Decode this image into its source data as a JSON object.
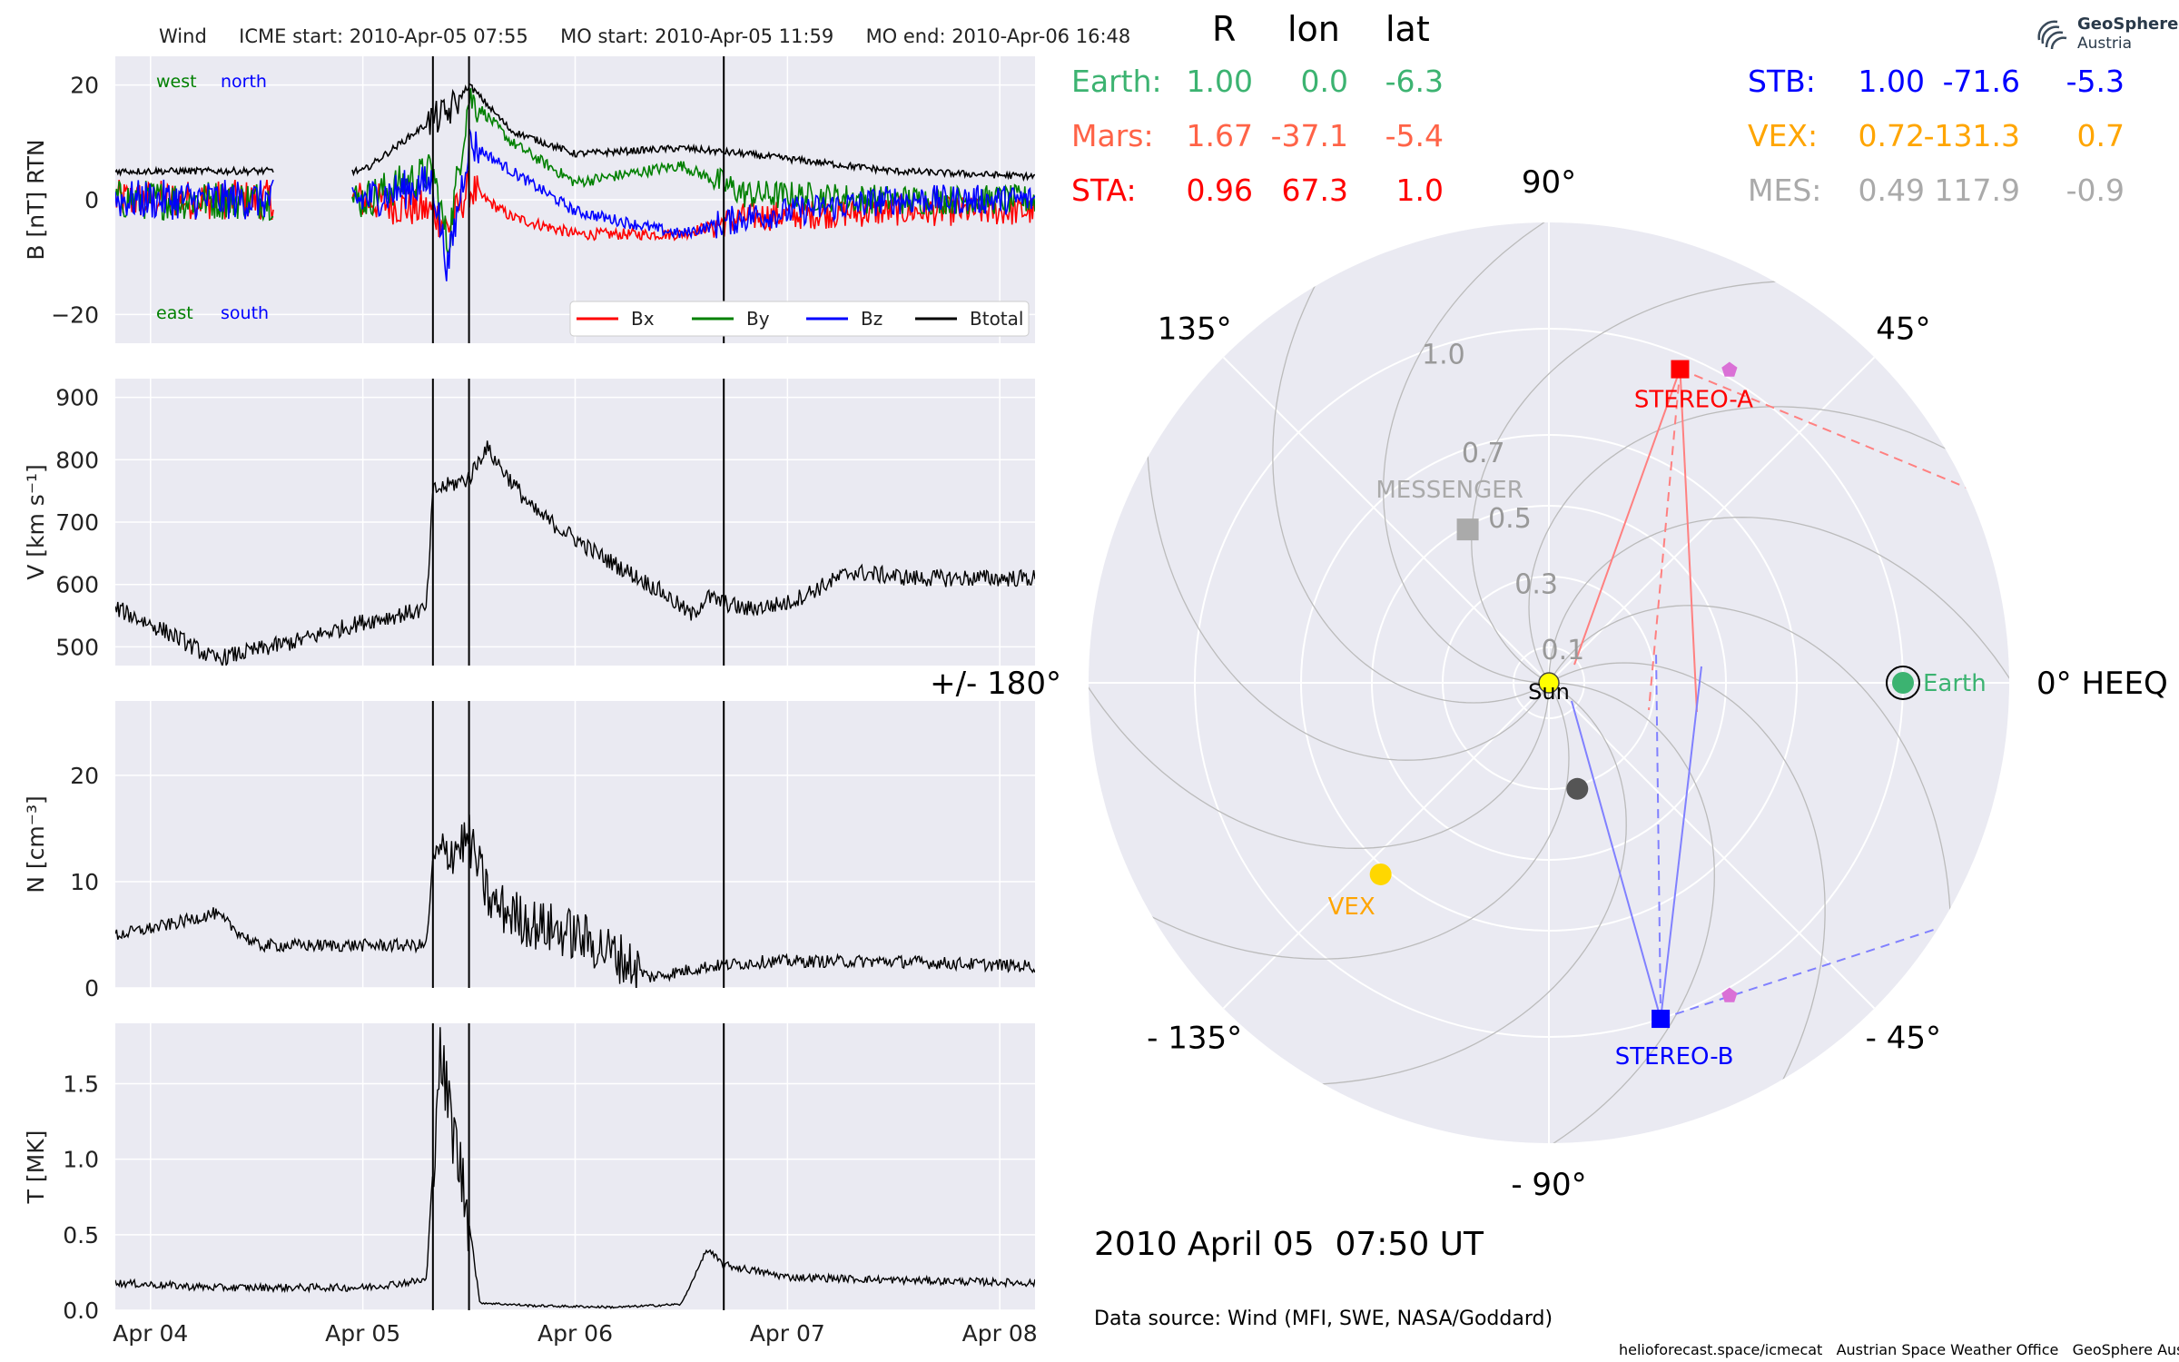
{
  "header": {
    "instrument": "Wind",
    "icme_start": "ICME start: 2010-Apr-05 07:55",
    "mo_start": "MO start: 2010-Apr-05 11:59",
    "mo_end": "MO end: 2010-Apr-06 16:48"
  },
  "logo": {
    "line1": "GeoSphere",
    "line2": "Austria"
  },
  "positions_table": {
    "columns": [
      "R",
      "lon",
      "lat"
    ],
    "left": [
      {
        "name": "Earth:",
        "R": "1.00",
        "lon": "0.0",
        "lat": "-6.3",
        "color": "#3cb371"
      },
      {
        "name": "Mars:",
        "R": "1.67",
        "lon": "-37.1",
        "lat": "-5.4",
        "color": "#ff6347"
      },
      {
        "name": "STA:",
        "R": "0.96",
        "lon": "67.3",
        "lat": "1.0",
        "color": "#ff0000"
      }
    ],
    "right": [
      {
        "name": "STB:",
        "R": "1.00",
        "lon": "-71.6",
        "lat": "-5.3",
        "color": "#0000ff"
      },
      {
        "name": "VEX:",
        "R": "0.72",
        "lon": "-131.3",
        "lat": "0.7",
        "color": "#ffa500"
      },
      {
        "name": "MES:",
        "R": "0.49",
        "lon": "117.9",
        "lat": "-0.9",
        "color": "#aaaaaa"
      }
    ]
  },
  "footer": {
    "datetime": "2010 April 05  07:50 UT",
    "source": "Data source: Wind (MFI, SWE, NASA/Goddard)",
    "credits": "helioforecast.space/icmecat   Austrian Space Weather Office   GeoSphere Austria"
  },
  "chart_data": [
    {
      "type": "line",
      "panel": "magnetic-field",
      "ylabel": "B [nT] RTN",
      "ylim": [
        -25,
        25
      ],
      "yticks": [
        "20",
        "0",
        "−20"
      ],
      "yticks_values": [
        20,
        0,
        -20
      ],
      "x_range_days": [
        "2010-04-03T20:00",
        "2010-04-08T04:00"
      ],
      "corner_labels": {
        "west": "west",
        "north": "north",
        "east": "east",
        "south": "south"
      },
      "legend": {
        "placement": "lower-right",
        "entries": [
          "Bx",
          "By",
          "Bz",
          "Btotal"
        ]
      },
      "colors": {
        "Bx": "#ff0000",
        "By": "#008000",
        "Bz": "#0000ff",
        "Btotal": "#000000"
      },
      "series": [
        {
          "name": "Bx",
          "x_day": [
            -0.15,
            0.7,
            1.0,
            1.33,
            1.4,
            1.5,
            1.7,
            2.0,
            2.5,
            2.8,
            3.5,
            4.2
          ],
          "y": [
            0,
            0,
            0,
            -2,
            -5,
            2,
            -3,
            -6,
            -6,
            -3,
            -2,
            -2
          ]
        },
        {
          "name": "By",
          "x_day": [
            -0.15,
            0.7,
            1.0,
            1.33,
            1.4,
            1.5,
            1.7,
            2.0,
            2.5,
            2.8,
            3.5,
            4.2
          ],
          "y": [
            0,
            0,
            0,
            5,
            -8,
            18,
            10,
            3,
            6,
            1,
            0,
            0
          ]
        },
        {
          "name": "Bz",
          "x_day": [
            -0.15,
            0.7,
            1.0,
            1.33,
            1.4,
            1.5,
            1.7,
            2.0,
            2.5,
            2.8,
            3.5,
            4.2
          ],
          "y": [
            0,
            0,
            0,
            3,
            -12,
            10,
            5,
            -2,
            -6,
            -3,
            0,
            0
          ]
        },
        {
          "name": "Btotal",
          "x_day": [
            -0.15,
            0.7,
            1.0,
            1.33,
            1.4,
            1.5,
            1.7,
            2.0,
            2.5,
            2.8,
            3.5,
            4.2
          ],
          "y": [
            5,
            5,
            5,
            14,
            15,
            20,
            12,
            8,
            9,
            8,
            5,
            4
          ]
        }
      ]
    },
    {
      "type": "line",
      "panel": "speed",
      "ylabel": "V [km s⁻¹]",
      "ylim": [
        470,
        930
      ],
      "yticks": [
        "900",
        "800",
        "700",
        "600",
        "500"
      ],
      "yticks_values": [
        900,
        800,
        700,
        600,
        500
      ],
      "series": [
        {
          "name": "V",
          "x_day": [
            -0.15,
            0.1,
            0.3,
            0.7,
            1.0,
            1.3,
            1.33,
            1.5,
            1.58,
            1.8,
            2.1,
            2.4,
            2.55,
            2.62,
            2.8,
            3.0,
            3.3,
            3.6,
            4.2
          ],
          "y": [
            560,
            520,
            480,
            510,
            540,
            560,
            750,
            770,
            820,
            720,
            650,
            590,
            550,
            580,
            560,
            570,
            620,
            610,
            610
          ]
        }
      ]
    },
    {
      "type": "line",
      "panel": "density",
      "ylabel": "N [cm⁻³]",
      "ylim": [
        0,
        27
      ],
      "yticks": [
        "20",
        "10",
        "0"
      ],
      "yticks_values": [
        20,
        10,
        0
      ],
      "series": [
        {
          "name": "N",
          "x_day": [
            -0.15,
            0.1,
            0.3,
            0.5,
            0.7,
            1.0,
            1.3,
            1.33,
            1.5,
            1.6,
            1.8,
            2.0,
            2.2,
            2.35,
            2.62,
            2.9,
            3.5,
            4.2
          ],
          "y": [
            5,
            6,
            7,
            4,
            4,
            4,
            4,
            12,
            14,
            8,
            6,
            5,
            3,
            1,
            2,
            2.5,
            2.5,
            2
          ]
        }
      ]
    },
    {
      "type": "line",
      "panel": "temperature",
      "ylabel": "T [MK]",
      "ylim": [
        0,
        1.9
      ],
      "yticks": [
        "1.5",
        "1.0",
        "0.5",
        "0.0"
      ],
      "yticks_values": [
        1.5,
        1.0,
        0.5,
        0.0
      ],
      "xticks": [
        "Apr 04",
        "Apr 05",
        "Apr 06",
        "Apr 07",
        "Apr 08"
      ],
      "xticks_values": [
        0,
        1,
        2,
        3,
        4
      ],
      "series": [
        {
          "name": "T",
          "x_day": [
            -0.15,
            0.3,
            0.7,
            1.0,
            1.3,
            1.36,
            1.45,
            1.5,
            1.55,
            1.8,
            2.2,
            2.5,
            2.62,
            2.7,
            3.0,
            3.5,
            4.2
          ],
          "y": [
            0.18,
            0.15,
            0.15,
            0.15,
            0.2,
            1.7,
            1.0,
            0.6,
            0.05,
            0.03,
            0.02,
            0.04,
            0.4,
            0.3,
            0.22,
            0.2,
            0.18
          ]
        }
      ]
    },
    {
      "type": "scatter",
      "panel": "heliosphere-polar",
      "radial_ticks": [
        "0.1",
        "0.3",
        "0.5",
        "0.7",
        "1.0"
      ],
      "radial_values": [
        0.1,
        0.3,
        0.5,
        0.7,
        1.0
      ],
      "angle_labels": [
        "90°",
        "45°",
        "0° HEEQ",
        "- 45°",
        "- 90°",
        "- 135°",
        "+/- 180°",
        "135°"
      ],
      "angle_values_deg": [
        90,
        45,
        0,
        -45,
        -90,
        -135,
        180,
        135
      ],
      "bodies": [
        {
          "name": "Sun",
          "r": 0.0,
          "lon": 0,
          "color": "#ffff00"
        },
        {
          "name": "Earth",
          "r": 1.0,
          "lon": 0.0,
          "color": "#3cb371"
        },
        {
          "name": "STEREO-A",
          "r": 0.96,
          "lon": 67.3,
          "color": "#ff0000"
        },
        {
          "name": "STEREO-B",
          "r": 1.0,
          "lon": -71.6,
          "color": "#0000ff"
        },
        {
          "name": "VEX",
          "r": 0.72,
          "lon": -131.3,
          "color": "#ffd700"
        },
        {
          "name": "MESSENGER",
          "r": 0.49,
          "lon": 117.9,
          "color": "#aaaaaa"
        },
        {
          "name": "",
          "r": 0.31,
          "lon": -75,
          "color": "#555555"
        }
      ],
      "markers": [
        {
          "name": "",
          "r": 1.02,
          "lon": 60,
          "color": "#da70d6"
        },
        {
          "name": "",
          "r": 1.02,
          "lon": -60,
          "color": "#da70d6"
        }
      ]
    }
  ]
}
